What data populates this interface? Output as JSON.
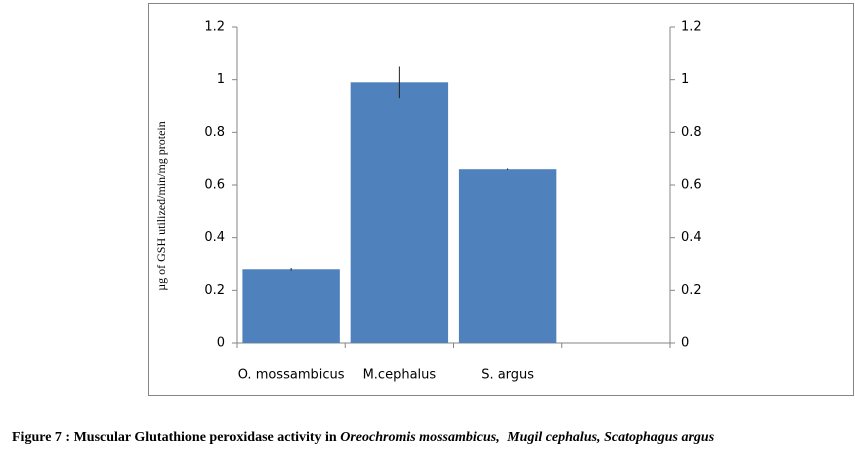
{
  "chart_data": {
    "type": "bar",
    "y_label": "µg of GSH utilized/min/mg protein",
    "categories": [
      "O. mossambicus",
      "M.cephalus",
      "S. argus",
      null
    ],
    "values": [
      0.28,
      0.99,
      0.66,
      null
    ],
    "errors": [
      0.005,
      0.06,
      0.003,
      null
    ],
    "color": "#4f81bd",
    "error_color": "#222222",
    "ylim": [
      0,
      1.2
    ],
    "yticks": [
      0,
      0.2,
      0.4,
      0.6,
      0.8,
      1,
      1.2
    ],
    "y2lim": [
      0,
      1.2
    ],
    "y2ticks": [
      0,
      0.2,
      0.4,
      0.6,
      0.8,
      1,
      1.2
    ],
    "grid": false
  },
  "caption": [
    "Figure 7 : Muscular Glutathione peroxidase activity in",
    "Oreochromis mossambicus,",
    "Mugil cephalus,",
    "Scatophagus argus"
  ]
}
